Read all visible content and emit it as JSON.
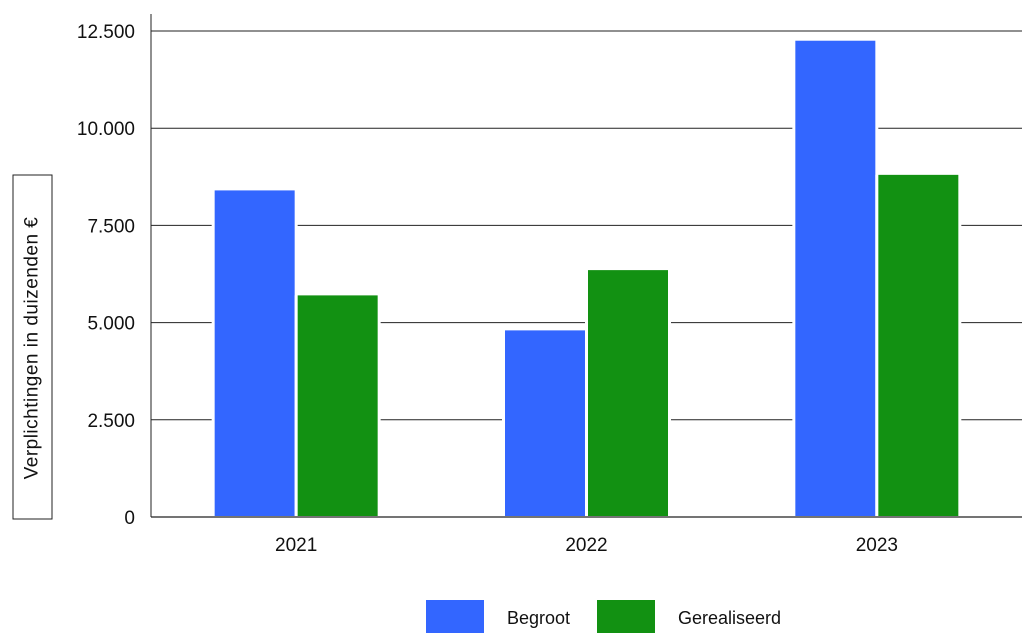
{
  "chart_data": {
    "type": "bar",
    "categories": [
      "2021",
      "2022",
      "2023"
    ],
    "series": [
      {
        "name": "Begroot",
        "values": [
          8400,
          4800,
          12250
        ],
        "color": "#3366ff"
      },
      {
        "name": "Gerealiseerd",
        "values": [
          5700,
          6350,
          8800
        ],
        "color": "#129112"
      }
    ],
    "ylabel": "Verplichtingen in duizenden €",
    "ylim": [
      0,
      12500
    ],
    "yticks": [
      0,
      2500,
      5000,
      7500,
      10000,
      12500
    ],
    "ytick_labels": [
      "0",
      "2.500",
      "5.000",
      "7.500",
      "10.000",
      "12.500"
    ],
    "grid": true,
    "legend_position": "bottom-center"
  }
}
